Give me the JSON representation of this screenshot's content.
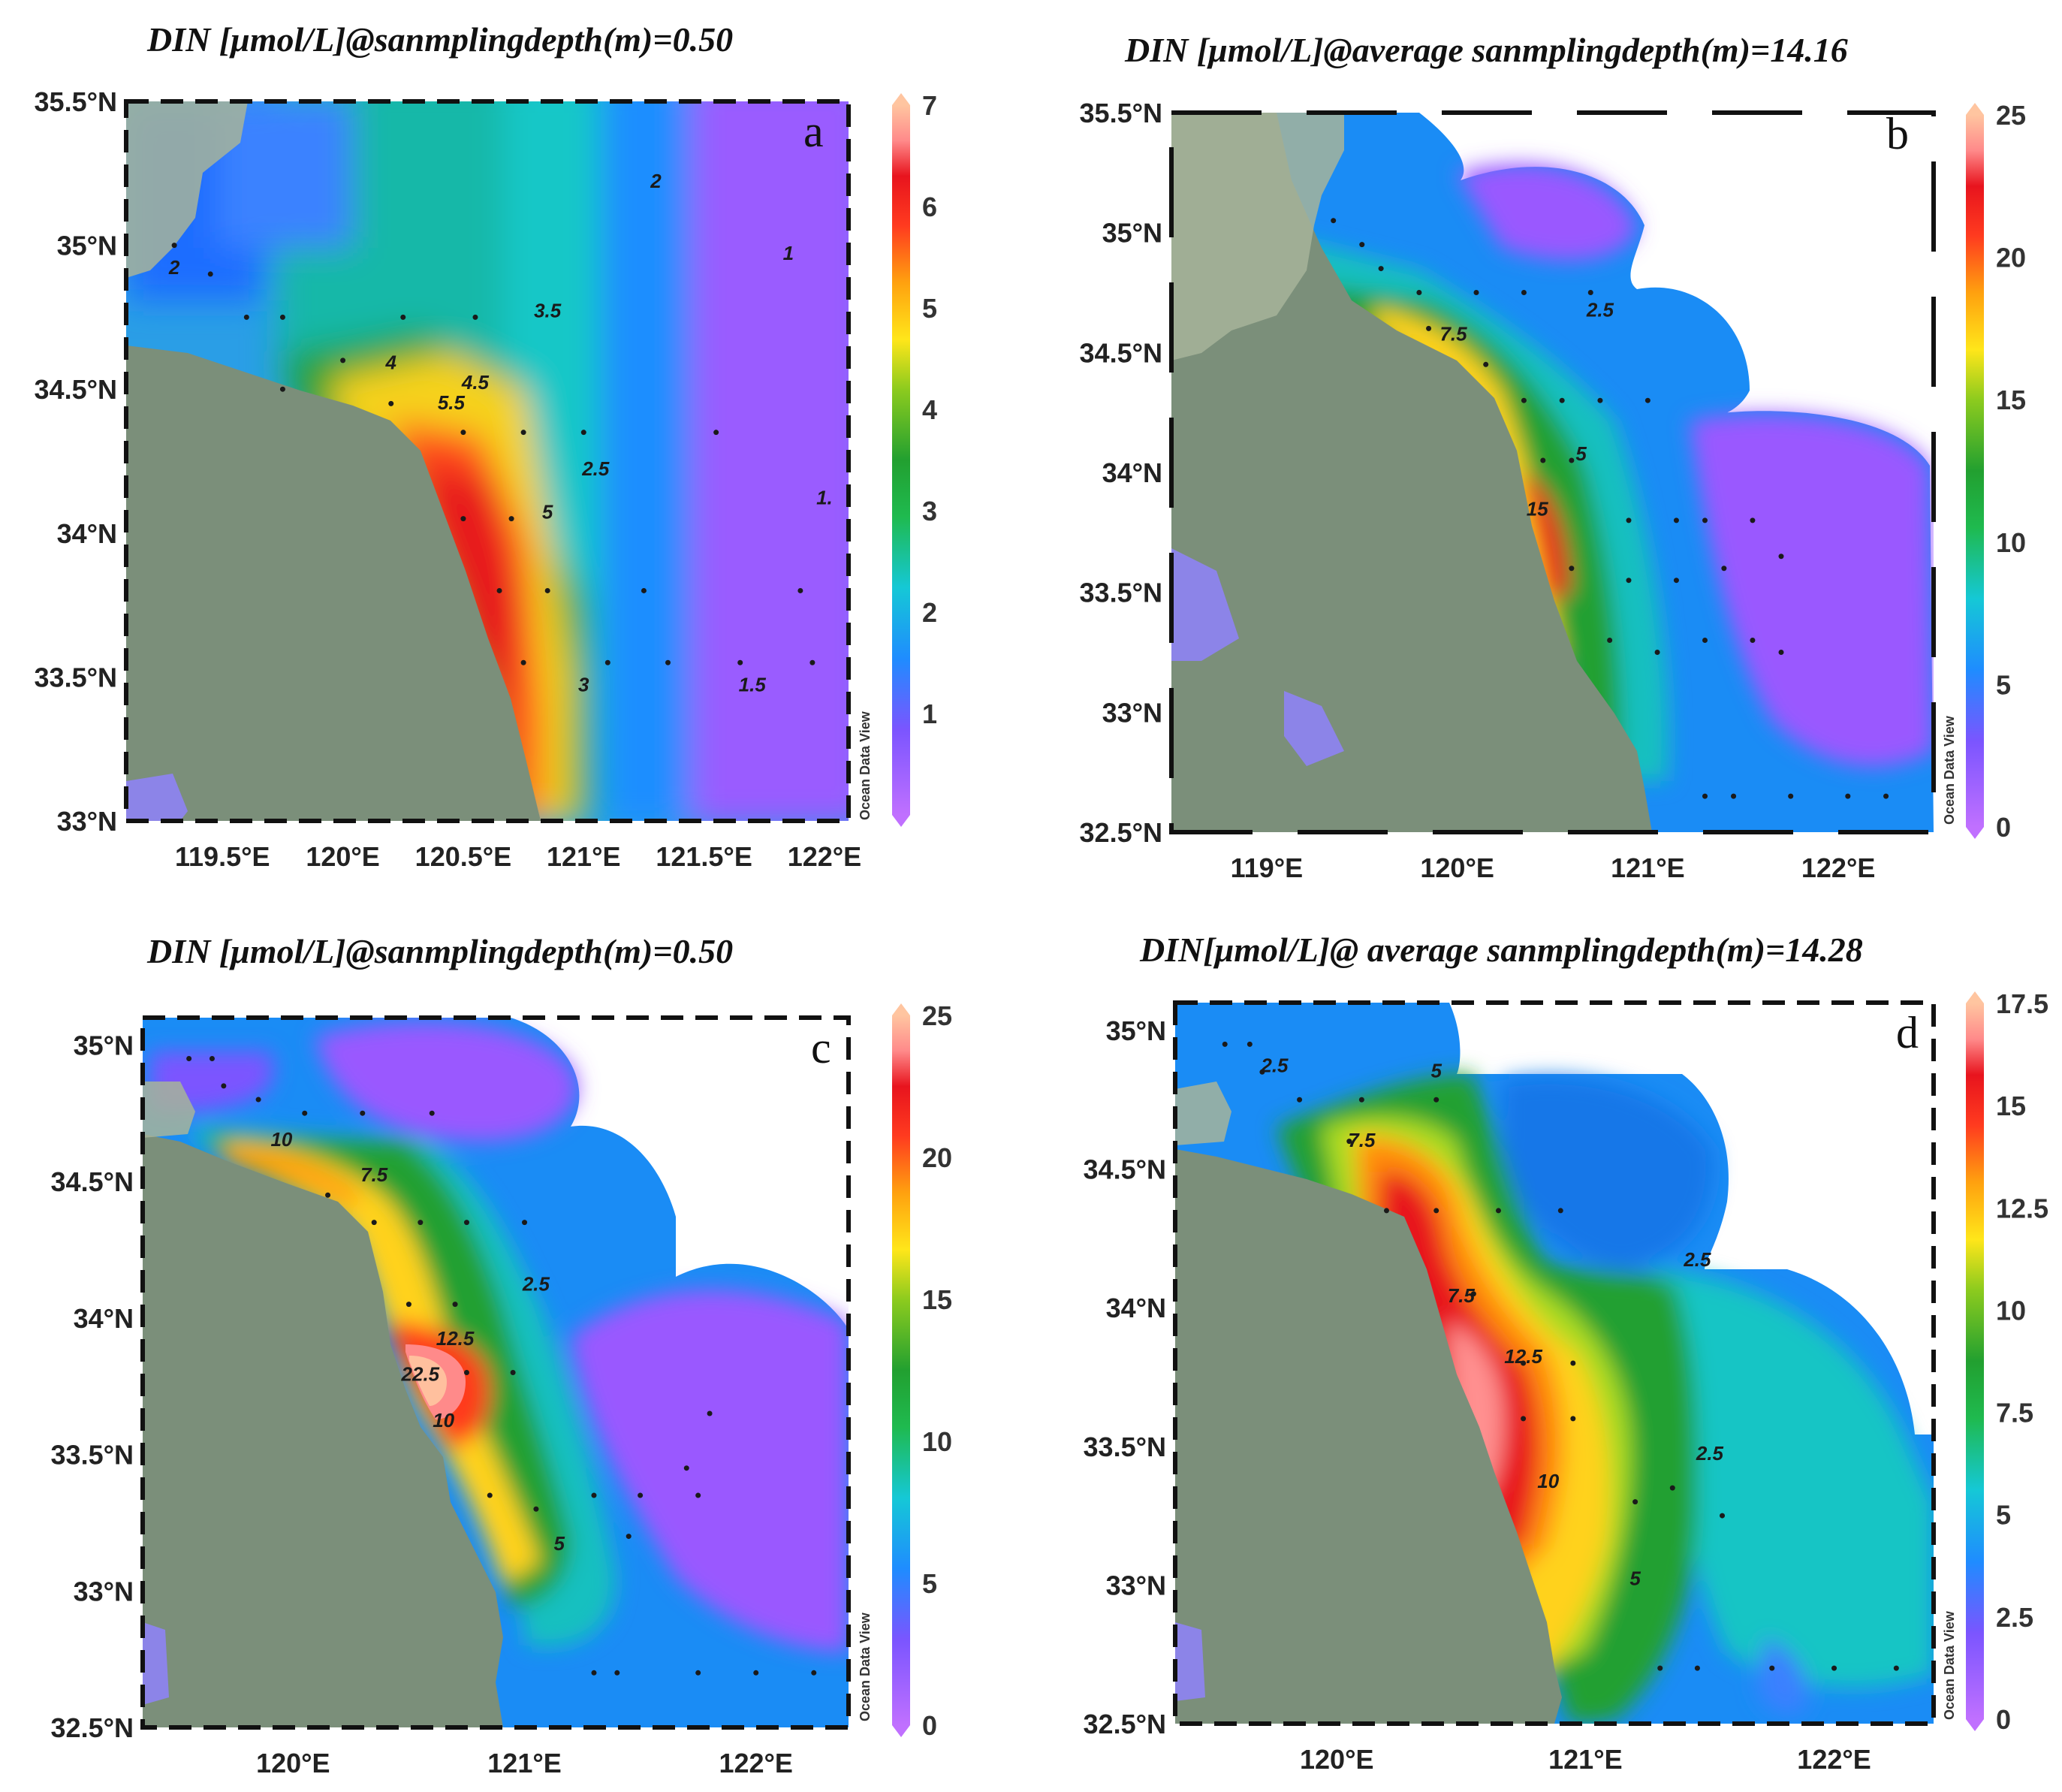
{
  "colors": {
    "land": "#7b8f7a",
    "land_far": "#a7b49a",
    "inland_water": "#8c84e8",
    "frame": "#111111",
    "station": "#1a1a1a"
  },
  "colormap": [
    "#b366ff",
    "#7b55ff",
    "#1f8cff",
    "#15c8d6",
    "#1fba4f",
    "#22a030",
    "#8dcb1e",
    "#ffe61a",
    "#ffa10f",
    "#ff3b1f",
    "#e8141e",
    "#ff8a8a",
    "#ffc5a0"
  ],
  "chart_data": [
    {
      "type": "contour-map",
      "panel": "a",
      "title": "DIN [μmol/L]@sanmplingdepth(m)=0.50",
      "variable": "DIN",
      "unit": "μmol/L",
      "depth_m": 0.5,
      "xlim": [
        119.1,
        122.1
      ],
      "ylim": [
        33.0,
        35.5
      ],
      "xticks": [
        119.5,
        120,
        120.5,
        121,
        121.5,
        122
      ],
      "xtick_labels": [
        "119.5°E",
        "120°E",
        "120.5°E",
        "121°E",
        "121.5°E",
        "122°E"
      ],
      "yticks": [
        33,
        33.5,
        34,
        34.5,
        35,
        35.5
      ],
      "ytick_labels": [
        "33°N",
        "33.5°N",
        "34°N",
        "34.5°N",
        "35°N",
        "35.5°N"
      ],
      "colorbar": {
        "min": 0,
        "max": 7,
        "ticks": [
          1,
          2,
          3,
          4,
          5,
          6,
          7
        ]
      },
      "contour_labels": [
        {
          "text": "2",
          "lon": 121.3,
          "lat": 35.2
        },
        {
          "text": "1",
          "lon": 121.85,
          "lat": 34.95
        },
        {
          "text": "2",
          "lon": 119.3,
          "lat": 34.9
        },
        {
          "text": "3.5",
          "lon": 120.85,
          "lat": 34.75
        },
        {
          "text": "4",
          "lon": 120.2,
          "lat": 34.57
        },
        {
          "text": "4.5",
          "lon": 120.55,
          "lat": 34.5
        },
        {
          "text": "5.5",
          "lon": 120.45,
          "lat": 34.43
        },
        {
          "text": "2.5",
          "lon": 121.05,
          "lat": 34.2
        },
        {
          "text": "5",
          "lon": 120.85,
          "lat": 34.05
        },
        {
          "text": "1.",
          "lon": 122.0,
          "lat": 34.1
        },
        {
          "text": "3",
          "lon": 121.0,
          "lat": 33.45
        },
        {
          "text": "1.5",
          "lon": 121.7,
          "lat": 33.45
        }
      ],
      "stations": [
        [
          119.3,
          35.0
        ],
        [
          119.45,
          34.9
        ],
        [
          119.6,
          34.75
        ],
        [
          119.75,
          34.75
        ],
        [
          120.0,
          34.6
        ],
        [
          120.25,
          34.75
        ],
        [
          120.55,
          34.75
        ],
        [
          119.75,
          34.5
        ],
        [
          120.2,
          34.45
        ],
        [
          120.5,
          34.35
        ],
        [
          120.75,
          34.35
        ],
        [
          121.0,
          34.35
        ],
        [
          121.55,
          34.35
        ],
        [
          120.5,
          34.05
        ],
        [
          120.7,
          34.05
        ],
        [
          120.85,
          33.8
        ],
        [
          120.65,
          33.8
        ],
        [
          121.25,
          33.8
        ],
        [
          121.9,
          33.8
        ],
        [
          120.75,
          33.55
        ],
        [
          121.1,
          33.55
        ],
        [
          121.35,
          33.55
        ],
        [
          121.65,
          33.55
        ],
        [
          121.95,
          33.55
        ]
      ]
    },
    {
      "type": "contour-map",
      "panel": "b",
      "title": "DIN [μmol/L]@average sanmplingdepth(m)=14.16",
      "variable": "DIN",
      "unit": "μmol/L",
      "depth_m": 14.16,
      "xlim": [
        118.5,
        122.5
      ],
      "ylim": [
        32.5,
        35.5
      ],
      "xticks": [
        119,
        120,
        121,
        122
      ],
      "xtick_labels": [
        "119°E",
        "120°E",
        "121°E",
        "122°E"
      ],
      "yticks": [
        32.5,
        33,
        33.5,
        34,
        34.5,
        35,
        35.5
      ],
      "ytick_labels": [
        "32.5°N",
        "33°N",
        "33.5°N",
        "34°N",
        "34.5°N",
        "35°N",
        "35.5°N"
      ],
      "colorbar": {
        "min": 0,
        "max": 25,
        "ticks": [
          0,
          5,
          10,
          15,
          20,
          25
        ]
      },
      "contour_labels": [
        {
          "text": "7.5",
          "lon": 119.98,
          "lat": 34.55
        },
        {
          "text": "2.5",
          "lon": 120.75,
          "lat": 34.65
        },
        {
          "text": "5",
          "lon": 120.65,
          "lat": 34.05
        },
        {
          "text": "15",
          "lon": 120.42,
          "lat": 33.82
        }
      ],
      "stations": [
        [
          119.35,
          35.05
        ],
        [
          119.5,
          34.95
        ],
        [
          119.6,
          34.85
        ],
        [
          119.8,
          34.75
        ],
        [
          120.1,
          34.75
        ],
        [
          120.35,
          34.75
        ],
        [
          120.7,
          34.75
        ],
        [
          119.85,
          34.6
        ],
        [
          120.15,
          34.45
        ],
        [
          120.35,
          34.3
        ],
        [
          120.55,
          34.3
        ],
        [
          120.75,
          34.3
        ],
        [
          121.0,
          34.3
        ],
        [
          120.45,
          34.05
        ],
        [
          120.6,
          34.05
        ],
        [
          120.9,
          33.8
        ],
        [
          121.15,
          33.8
        ],
        [
          121.3,
          33.8
        ],
        [
          121.55,
          33.8
        ],
        [
          121.7,
          33.65
        ],
        [
          121.4,
          33.6
        ],
        [
          121.15,
          33.55
        ],
        [
          120.9,
          33.55
        ],
        [
          120.6,
          33.6
        ],
        [
          120.8,
          33.3
        ],
        [
          121.05,
          33.25
        ],
        [
          121.3,
          33.3
        ],
        [
          121.55,
          33.3
        ],
        [
          121.7,
          33.25
        ],
        [
          121.3,
          32.65
        ],
        [
          121.45,
          32.65
        ],
        [
          121.75,
          32.65
        ],
        [
          122.05,
          32.65
        ],
        [
          122.25,
          32.65
        ]
      ]
    },
    {
      "type": "contour-map",
      "panel": "c",
      "title": "DIN [μmol/L]@sanmplingdepth(m)=0.50",
      "variable": "DIN",
      "unit": "μmol/L",
      "depth_m": 0.5,
      "xlim": [
        119.35,
        122.4
      ],
      "ylim": [
        32.5,
        35.1
      ],
      "xticks": [
        120,
        121,
        122
      ],
      "xtick_labels": [
        "120°E",
        "121°E",
        "122°E"
      ],
      "yticks": [
        32.5,
        33,
        33.5,
        34,
        34.5,
        35
      ],
      "ytick_labels": [
        "32.5°N",
        "33°N",
        "33.5°N",
        "34°N",
        "34.5°N",
        "35°N"
      ],
      "colorbar": {
        "min": 0,
        "max": 25,
        "ticks": [
          0,
          5,
          10,
          15,
          20,
          25
        ]
      },
      "contour_labels": [
        {
          "text": "10",
          "lon": 119.95,
          "lat": 34.63
        },
        {
          "text": "7.5",
          "lon": 120.35,
          "lat": 34.5
        },
        {
          "text": "2.5",
          "lon": 121.05,
          "lat": 34.1
        },
        {
          "text": "12.5",
          "lon": 120.7,
          "lat": 33.9
        },
        {
          "text": "22.5",
          "lon": 120.55,
          "lat": 33.77
        },
        {
          "text": "10",
          "lon": 120.65,
          "lat": 33.6
        },
        {
          "text": "5",
          "lon": 121.15,
          "lat": 33.15
        }
      ],
      "stations": [
        [
          119.55,
          34.95
        ],
        [
          119.65,
          34.95
        ],
        [
          119.7,
          34.85
        ],
        [
          119.85,
          34.8
        ],
        [
          120.05,
          34.75
        ],
        [
          120.3,
          34.75
        ],
        [
          120.6,
          34.75
        ],
        [
          120.15,
          34.45
        ],
        [
          120.35,
          34.35
        ],
        [
          120.55,
          34.35
        ],
        [
          120.75,
          34.35
        ],
        [
          121.0,
          34.35
        ],
        [
          120.5,
          34.05
        ],
        [
          120.7,
          34.05
        ],
        [
          120.75,
          33.8
        ],
        [
          120.95,
          33.8
        ],
        [
          121.8,
          33.65
        ],
        [
          121.7,
          33.45
        ],
        [
          120.85,
          33.35
        ],
        [
          121.05,
          33.3
        ],
        [
          121.3,
          33.35
        ],
        [
          121.5,
          33.35
        ],
        [
          121.75,
          33.35
        ],
        [
          121.45,
          33.2
        ],
        [
          121.3,
          32.7
        ],
        [
          121.4,
          32.7
        ],
        [
          121.75,
          32.7
        ],
        [
          122.0,
          32.7
        ],
        [
          122.25,
          32.7
        ]
      ]
    },
    {
      "type": "contour-map",
      "panel": "d",
      "title": "DIN[μmol/L]@ average sanmplingdepth(m)=14.28",
      "variable": "DIN",
      "unit": "μmol/L",
      "depth_m": 14.28,
      "xlim": [
        119.35,
        122.4
      ],
      "ylim": [
        32.5,
        35.1
      ],
      "xticks": [
        120,
        121,
        122
      ],
      "xtick_labels": [
        "120°E",
        "121°E",
        "122°E"
      ],
      "yticks": [
        32.5,
        33,
        33.5,
        34,
        34.5,
        35
      ],
      "ytick_labels": [
        "32.5°N",
        "33°N",
        "33.5°N",
        "34°N",
        "34.5°N",
        "35°N"
      ],
      "colorbar": {
        "min": 0,
        "max": 17.5,
        "ticks": [
          0,
          2.5,
          5,
          7.5,
          10,
          12.5,
          15,
          17.5
        ]
      },
      "contour_labels": [
        {
          "text": "2.5",
          "lon": 119.75,
          "lat": 34.85
        },
        {
          "text": "5",
          "lon": 120.4,
          "lat": 34.83
        },
        {
          "text": "7.5",
          "lon": 120.1,
          "lat": 34.58
        },
        {
          "text": "2.5",
          "lon": 121.45,
          "lat": 34.15
        },
        {
          "text": "7.5",
          "lon": 120.5,
          "lat": 34.02
        },
        {
          "text": "12.5",
          "lon": 120.75,
          "lat": 33.8
        },
        {
          "text": "2.5",
          "lon": 121.5,
          "lat": 33.45
        },
        {
          "text": "10",
          "lon": 120.85,
          "lat": 33.35
        },
        {
          "text": "5",
          "lon": 121.2,
          "lat": 33.0
        }
      ],
      "stations": [
        [
          119.55,
          34.95
        ],
        [
          119.65,
          34.95
        ],
        [
          119.7,
          34.85
        ],
        [
          119.85,
          34.75
        ],
        [
          120.1,
          34.75
        ],
        [
          120.4,
          34.75
        ],
        [
          120.05,
          34.6
        ],
        [
          120.2,
          34.35
        ],
        [
          120.4,
          34.35
        ],
        [
          120.65,
          34.35
        ],
        [
          120.9,
          34.35
        ],
        [
          120.55,
          34.05
        ],
        [
          120.75,
          33.8
        ],
        [
          120.95,
          33.8
        ],
        [
          120.75,
          33.6
        ],
        [
          120.95,
          33.6
        ],
        [
          121.2,
          33.3
        ],
        [
          121.35,
          33.35
        ],
        [
          121.55,
          33.25
        ],
        [
          121.3,
          32.7
        ],
        [
          121.45,
          32.7
        ],
        [
          121.75,
          32.7
        ],
        [
          122.0,
          32.7
        ],
        [
          122.25,
          32.7
        ]
      ]
    }
  ],
  "panel_letters": [
    "a",
    "b",
    "c",
    "d"
  ],
  "credit": "Ocean Data View"
}
